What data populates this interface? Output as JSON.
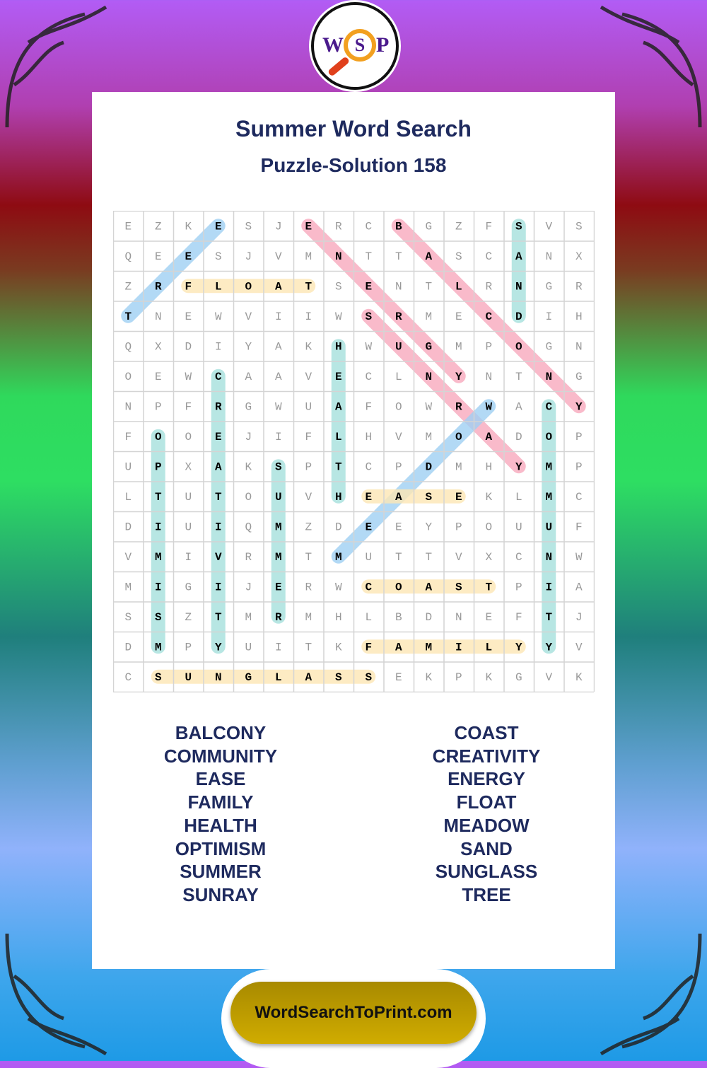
{
  "logo": {
    "left": "W",
    "center": "S",
    "right": "P"
  },
  "header": {
    "title": "Summer Word Search",
    "subtitle": "Puzzle-Solution 158"
  },
  "grid": {
    "rows": [
      "EZKESJERCBGZFSVS",
      "QEESJVMNTTASCANX",
      "ZRFLOATSENTLRNGR",
      "TNEWVIIWSRMECDIH",
      "QXDIYAKHWUGMPOGN",
      "OEWCAAVECLNYNTNG",
      "NPFRGWUAFOWRWACY",
      "FOOEJIFLHVMOADOP",
      "UPXAKSPTCPDMHYMP",
      "LTUTOUVHEASEKLMC",
      "DIUIQMZDEEYPOUUF",
      "VMIVRMTMUTTVXCNW",
      "MIGIJERWCOASTPIA",
      "SSZTMRMHLBDNEFTJ",
      "DMPYUITKFAMILYYV",
      "CSUNGLASSEKPKGVK"
    ],
    "solutions": [
      {
        "word": "TREE",
        "start": [
          3,
          0
        ],
        "end": [
          0,
          3
        ],
        "color": "blue"
      },
      {
        "word": "FLOAT",
        "start": [
          2,
          2
        ],
        "end": [
          2,
          6
        ],
        "color": "yellow"
      },
      {
        "word": "ENERGY",
        "start": [
          0,
          6
        ],
        "end": [
          5,
          11
        ],
        "color": "pink"
      },
      {
        "word": "BALCONY",
        "start": [
          0,
          9
        ],
        "end": [
          6,
          15
        ],
        "color": "pink"
      },
      {
        "word": "SAND",
        "start": [
          0,
          13
        ],
        "end": [
          3,
          13
        ],
        "color": "teal"
      },
      {
        "word": "SUNRAY",
        "start": [
          3,
          8
        ],
        "end": [
          8,
          13
        ],
        "color": "pink"
      },
      {
        "word": "HEALTH",
        "start": [
          4,
          7
        ],
        "end": [
          9,
          7
        ],
        "color": "teal"
      },
      {
        "word": "CREATIVITY",
        "start": [
          5,
          3
        ],
        "end": [
          14,
          3
        ],
        "color": "teal"
      },
      {
        "word": "OPTIMISM",
        "start": [
          7,
          1
        ],
        "end": [
          14,
          1
        ],
        "color": "teal"
      },
      {
        "word": "SUMMER",
        "start": [
          8,
          5
        ],
        "end": [
          13,
          5
        ],
        "color": "teal"
      },
      {
        "word": "MEADOW",
        "start": [
          11,
          7
        ],
        "end": [
          6,
          12
        ],
        "color": "blue"
      },
      {
        "word": "COMMUNITY",
        "start": [
          6,
          14
        ],
        "end": [
          14,
          14
        ],
        "color": "teal"
      },
      {
        "word": "EASE",
        "start": [
          9,
          8
        ],
        "end": [
          9,
          11
        ],
        "color": "yellow"
      },
      {
        "word": "COAST",
        "start": [
          12,
          8
        ],
        "end": [
          12,
          12
        ],
        "color": "yellow"
      },
      {
        "word": "FAMILY",
        "start": [
          14,
          8
        ],
        "end": [
          14,
          13
        ],
        "color": "yellow"
      },
      {
        "word": "SUNGLASS",
        "start": [
          15,
          1
        ],
        "end": [
          15,
          8
        ],
        "color": "yellow"
      }
    ]
  },
  "colors": {
    "pink": "#f7a9bd",
    "blue": "#9fd0f3",
    "teal": "#a5e0dc",
    "yellow": "#fde6b4",
    "title": "#1e2a5e",
    "accent": "#c9a400"
  },
  "word_list": {
    "left": [
      "BALCONY",
      "COMMUNITY",
      "EASE",
      "FAMILY",
      "HEALTH",
      "OPTIMISM",
      "SUMMER",
      "SUNRAY"
    ],
    "right": [
      "COAST",
      "CREATIVITY",
      "ENERGY",
      "FLOAT",
      "MEADOW",
      "SAND",
      "SUNGLASS",
      "TREE"
    ]
  },
  "footer": {
    "site": "WordSearchToPrint.com"
  }
}
